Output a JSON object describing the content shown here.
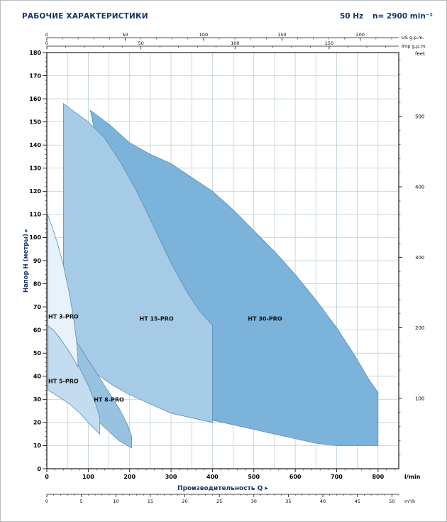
{
  "header": {
    "title": "РАБОЧИЕ ХАРАКТЕРИСТИКИ",
    "frequency": "50 Hz",
    "speed": "n= 2900 min⁻¹"
  },
  "chart_data": {
    "type": "area",
    "title": "РАБОЧИЕ ХАРАКТЕРИСТИКИ — 50 Hz, n= 2900 min⁻¹",
    "x_range_lmin": [
      0,
      850
    ],
    "y_range_m": [
      0,
      180
    ],
    "xlabel": "Производительность Q  ▸",
    "colors": {
      "accent": "#17366d",
      "grid": "#b4cad7",
      "region_stroke": "#4d86b0",
      "frame": "#1a1a1a"
    },
    "axes": {
      "left_m": {
        "label": "Напор H (метры)  ▸",
        "ticks": [
          0,
          10,
          20,
          30,
          40,
          50,
          60,
          70,
          80,
          90,
          100,
          110,
          120,
          130,
          140,
          150,
          160,
          170,
          180
        ],
        "minor_step": 2
      },
      "right_feet": {
        "unit": "feet",
        "ticks": [
          100,
          200,
          300,
          400,
          500
        ],
        "minor_step": 20
      },
      "bottom_lmin": {
        "unit": "l/min",
        "ticks": [
          0,
          100,
          200,
          300,
          400,
          500,
          600,
          700,
          800
        ],
        "minor_step": 20
      },
      "bottom_m3h": {
        "unit": "m³/h",
        "ticks": [
          0,
          5,
          10,
          15,
          20,
          25,
          30,
          35,
          40,
          45,
          50
        ],
        "minor_step": 1
      },
      "top_usgpm": {
        "unit": "US g.p.m.",
        "ticks": [
          0,
          50,
          100,
          150,
          200
        ],
        "minor_step": 10
      },
      "top_impgpm": {
        "unit": "Imp g.p.m.",
        "ticks": [
          0,
          50,
          100,
          150
        ],
        "minor_step": 10
      }
    },
    "series": [
      {
        "name": "HT 30-PRO",
        "color": "#7cb3da",
        "label_pos": [
          527,
          64
        ],
        "points": [
          [
            105,
            155
          ],
          [
            150,
            149
          ],
          [
            200,
            141
          ],
          [
            250,
            136
          ],
          [
            300,
            132
          ],
          [
            350,
            126
          ],
          [
            400,
            120
          ],
          [
            450,
            112
          ],
          [
            500,
            103
          ],
          [
            550,
            94
          ],
          [
            600,
            84
          ],
          [
            650,
            73
          ],
          [
            700,
            61
          ],
          [
            740,
            50
          ],
          [
            780,
            38
          ],
          [
            800,
            33
          ],
          [
            800,
            10
          ],
          [
            740,
            10
          ],
          [
            700,
            10
          ],
          [
            650,
            11
          ],
          [
            600,
            13
          ],
          [
            550,
            15
          ],
          [
            500,
            17
          ],
          [
            450,
            19
          ],
          [
            400,
            21
          ],
          [
            360,
            23
          ],
          [
            330,
            30
          ],
          [
            290,
            45
          ],
          [
            250,
            62
          ],
          [
            210,
            82
          ],
          [
            175,
            102
          ],
          [
            145,
            124
          ],
          [
            120,
            142
          ]
        ]
      },
      {
        "name": "HT 15-PRO",
        "color": "#a6cbe7",
        "label_pos": [
          265,
          64
        ],
        "points": [
          [
            40,
            158
          ],
          [
            70,
            154
          ],
          [
            100,
            150
          ],
          [
            140,
            143
          ],
          [
            180,
            132
          ],
          [
            220,
            119
          ],
          [
            260,
            104
          ],
          [
            300,
            89
          ],
          [
            340,
            76
          ],
          [
            370,
            68
          ],
          [
            400,
            62
          ],
          [
            400,
            20
          ],
          [
            350,
            22
          ],
          [
            300,
            24
          ],
          [
            250,
            28
          ],
          [
            200,
            32
          ],
          [
            160,
            36
          ],
          [
            120,
            41
          ],
          [
            90,
            45
          ],
          [
            60,
            50
          ],
          [
            40,
            53
          ]
        ]
      },
      {
        "name": "HT 8-PRO",
        "color": "#97c2e0",
        "label_pos": [
          150,
          29
        ],
        "points": [
          [
            50,
            60
          ],
          [
            75,
            54
          ],
          [
            100,
            47
          ],
          [
            125,
            40
          ],
          [
            150,
            33
          ],
          [
            175,
            26
          ],
          [
            195,
            19
          ],
          [
            205,
            14
          ],
          [
            205,
            9
          ],
          [
            175,
            12
          ],
          [
            145,
            17
          ],
          [
            115,
            22
          ],
          [
            85,
            27
          ],
          [
            60,
            31
          ],
          [
            50,
            33
          ]
        ]
      },
      {
        "name": "HT 5-PRO",
        "color": "#c3dcef",
        "label_pos": [
          40,
          37
        ],
        "points": [
          [
            3,
            63
          ],
          [
            25,
            58
          ],
          [
            50,
            52
          ],
          [
            75,
            45
          ],
          [
            100,
            36
          ],
          [
            118,
            28
          ],
          [
            128,
            22
          ],
          [
            128,
            15
          ],
          [
            105,
            19
          ],
          [
            80,
            24
          ],
          [
            55,
            28
          ],
          [
            30,
            31
          ],
          [
            3,
            34
          ]
        ]
      },
      {
        "name": "HT 3-PRO",
        "color": "#e8f2fb",
        "label_pos": [
          40,
          65
        ],
        "points": [
          [
            2,
            110
          ],
          [
            12,
            105
          ],
          [
            25,
            98
          ],
          [
            40,
            88
          ],
          [
            53,
            77
          ],
          [
            64,
            66
          ],
          [
            72,
            55
          ],
          [
            75,
            48
          ],
          [
            75,
            44
          ],
          [
            60,
            49
          ],
          [
            45,
            53
          ],
          [
            30,
            57
          ],
          [
            15,
            60
          ],
          [
            2,
            62
          ]
        ]
      }
    ]
  }
}
